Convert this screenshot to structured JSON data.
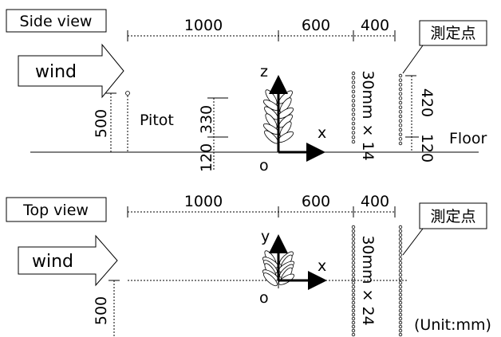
{
  "side_view": {
    "title": "Side view",
    "dimensions": [
      "1000",
      "600",
      "400"
    ],
    "measurement_label": "測定点",
    "wind": "wind",
    "axis_vertical": "z",
    "axis_horizontal": "x",
    "origin": "o",
    "pitot": "Pitot",
    "pitot_height": "500",
    "plant_heights": [
      "330",
      "120"
    ],
    "column_label": "30mm × 14",
    "column_heights": [
      "420",
      "120"
    ],
    "floor": "Floor"
  },
  "top_view": {
    "title": "Top view",
    "dimensions": [
      "1000",
      "600",
      "400"
    ],
    "measurement_label": "測定点",
    "wind": "wind",
    "axis_vertical": "y",
    "axis_horizontal": "x",
    "origin": "o",
    "offset": "500",
    "column_label": "30mm × 24",
    "unit": "(Unit:mm)"
  }
}
